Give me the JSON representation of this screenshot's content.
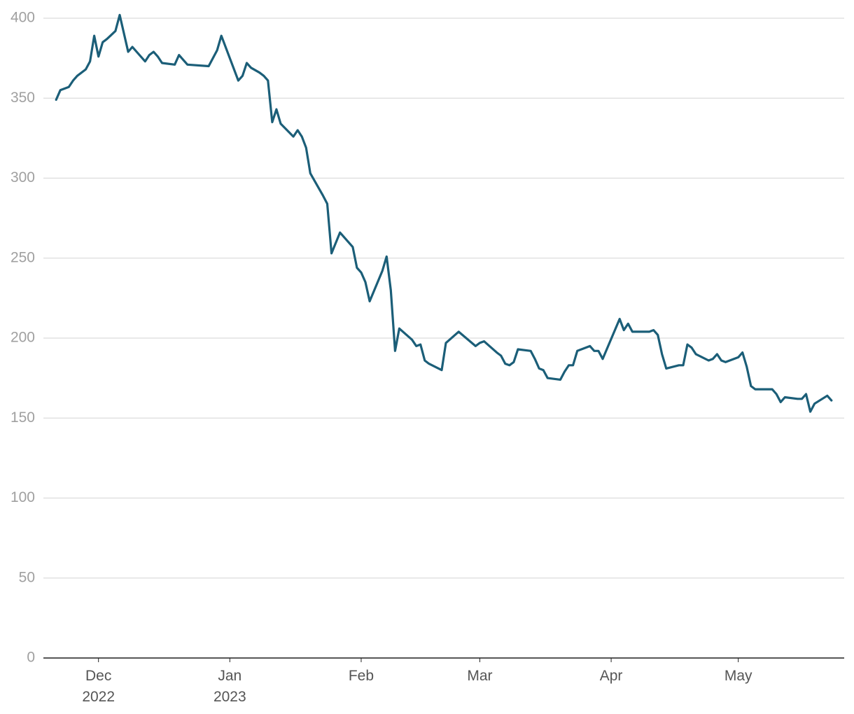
{
  "chart_data": {
    "type": "line",
    "series": [
      {
        "color": "#1b5e78",
        "x": [
          "2022-11-21",
          "2022-11-22",
          "2022-11-23",
          "2022-11-24",
          "2022-11-25",
          "2022-11-26",
          "2022-11-28",
          "2022-11-29",
          "2022-11-30",
          "2022-12-01",
          "2022-12-02",
          "2022-12-03",
          "2022-12-05",
          "2022-12-06",
          "2022-12-08",
          "2022-12-09",
          "2022-12-10",
          "2022-12-12",
          "2022-12-13",
          "2022-12-14",
          "2022-12-15",
          "2022-12-16",
          "2022-12-19",
          "2022-12-20",
          "2022-12-21",
          "2022-12-22",
          "2022-12-27",
          "2022-12-29",
          "2022-12-30",
          "2023-01-01",
          "2023-01-03",
          "2023-01-04",
          "2023-01-05",
          "2023-01-06",
          "2023-01-08",
          "2023-01-09",
          "2023-01-10",
          "2023-01-11",
          "2023-01-12",
          "2023-01-13",
          "2023-01-16",
          "2023-01-17",
          "2023-01-18",
          "2023-01-19",
          "2023-01-20",
          "2023-01-23",
          "2023-01-24",
          "2023-01-25",
          "2023-01-27",
          "2023-01-30",
          "2023-01-31",
          "2023-02-01",
          "2023-02-02",
          "2023-02-03",
          "2023-02-06",
          "2023-02-07",
          "2023-02-08",
          "2023-02-09",
          "2023-02-10",
          "2023-02-13",
          "2023-02-14",
          "2023-02-15",
          "2023-02-16",
          "2023-02-17",
          "2023-02-20",
          "2023-02-21",
          "2023-02-24",
          "2023-02-28",
          "2023-03-01",
          "2023-03-02",
          "2023-03-05",
          "2023-03-06",
          "2023-03-07",
          "2023-03-08",
          "2023-03-09",
          "2023-03-10",
          "2023-03-13",
          "2023-03-14",
          "2023-03-15",
          "2023-03-16",
          "2023-03-17",
          "2023-03-20",
          "2023-03-21",
          "2023-03-22",
          "2023-03-23",
          "2023-03-24",
          "2023-03-27",
          "2023-03-28",
          "2023-03-29",
          "2023-03-30",
          "2023-04-03",
          "2023-04-04",
          "2023-04-05",
          "2023-04-06",
          "2023-04-10",
          "2023-04-11",
          "2023-04-12",
          "2023-04-13",
          "2023-04-14",
          "2023-04-17",
          "2023-04-18",
          "2023-04-19",
          "2023-04-20",
          "2023-04-21",
          "2023-04-24",
          "2023-04-25",
          "2023-04-26",
          "2023-04-27",
          "2023-04-28",
          "2023-05-01",
          "2023-05-02",
          "2023-05-03",
          "2023-05-04",
          "2023-05-05",
          "2023-05-08",
          "2023-05-09",
          "2023-05-10",
          "2023-05-11",
          "2023-05-12",
          "2023-05-15",
          "2023-05-16",
          "2023-05-17",
          "2023-05-18",
          "2023-05-19",
          "2023-05-22",
          "2023-05-23"
        ],
        "values": [
          349,
          355,
          356,
          357,
          361,
          364,
          368,
          373,
          389,
          376,
          385,
          387,
          392,
          402,
          379,
          382,
          379,
          373,
          377,
          379,
          376,
          372,
          371,
          377,
          374,
          371,
          370,
          380,
          389,
          375,
          361,
          364,
          372,
          369,
          366,
          364,
          361,
          335,
          343,
          334,
          326,
          330,
          326,
          319,
          303,
          289,
          284,
          253,
          266,
          257,
          244,
          241,
          235,
          223,
          242,
          251,
          230,
          192,
          206,
          199,
          195,
          196,
          186,
          184,
          180,
          197,
          204,
          195,
          197,
          198,
          191,
          189,
          184,
          183,
          185,
          193,
          192,
          187,
          181,
          180,
          175,
          174,
          179,
          183,
          183,
          192,
          195,
          192,
          192,
          187,
          212,
          205,
          209,
          204,
          204,
          205,
          202,
          190,
          181,
          183,
          183,
          196,
          194,
          190,
          186,
          187,
          190,
          186,
          185,
          188,
          191,
          182,
          170,
          168,
          168,
          168,
          165,
          160,
          163,
          162,
          162,
          165,
          154,
          159,
          164,
          161
        ]
      }
    ],
    "xlim": [
      "2022-11-18",
      "2023-05-26"
    ],
    "xticks": [
      {
        "value": "2022-12-01",
        "label": "Dec\n2022"
      },
      {
        "value": "2023-01-01",
        "label": "Jan\n2023"
      },
      {
        "value": "2023-02-01",
        "label": "Feb"
      },
      {
        "value": "2023-03-01",
        "label": "Mar"
      },
      {
        "value": "2023-04-01",
        "label": "Apr"
      },
      {
        "value": "2023-05-01",
        "label": "May"
      }
    ],
    "ylim": [
      0,
      400
    ],
    "yticks": [
      0,
      50,
      100,
      150,
      200,
      250,
      300,
      350,
      400
    ],
    "grid": true
  }
}
